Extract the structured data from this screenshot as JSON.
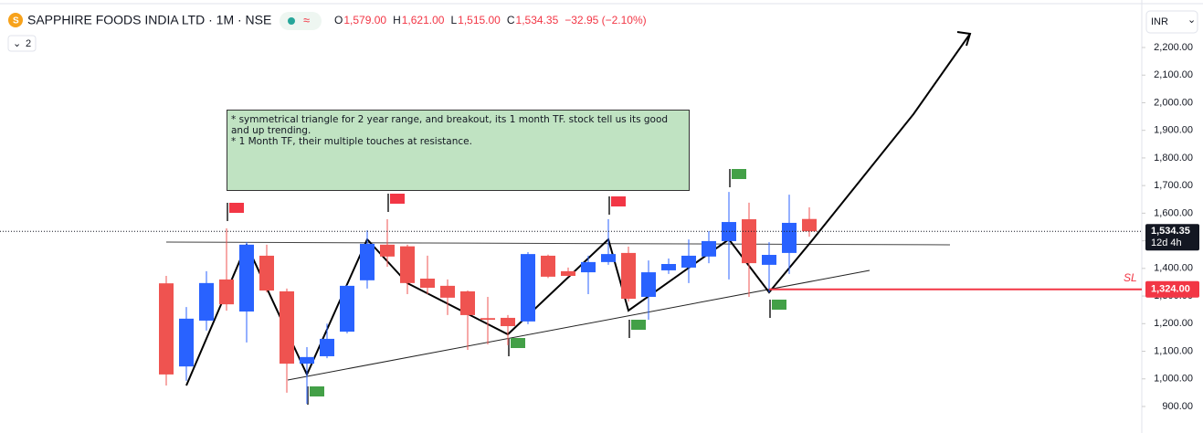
{
  "chart_data": {
    "type": "candlestick",
    "header": {
      "symbol": "SAPPHIRE FOODS INDIA LTD · 1M · NSE",
      "ohlc": [
        {
          "label": "O",
          "value": "1,579.00"
        },
        {
          "label": "H",
          "value": "1,621.00"
        },
        {
          "label": "L",
          "value": "1,515.00"
        },
        {
          "label": "C",
          "value": "1,534.35"
        }
      ],
      "change": "−32.95 (−2.10%)",
      "indicator_count": "2",
      "currency": "INR"
    },
    "annotation": [
      "*  symmetrical triangle for 2 year range, and breakout, its 1 month TF. stock tell us its good and up trending.",
      "*  1 Month TF, their multiple touches at resistance."
    ],
    "up_color": "#2962ff",
    "down_color": "#ef5350",
    "open": [
      1346,
      1045,
      1211,
      1360,
      1244,
      1446,
      1317,
      1055,
      1082,
      1171,
      1357,
      1486,
      1480,
      1363,
      1337,
      1317,
      1220,
      1221,
      1208,
      1446,
      1390,
      1386,
      1423,
      1456,
      1297,
      1393,
      1403,
      1443,
      1499,
      1578,
      1413,
      1456,
      1579
    ],
    "high": [
      1373,
      1260,
      1390,
      1545,
      1495,
      1486,
      1327,
      1115,
      1200,
      1340,
      1538,
      1578,
      1486,
      1446,
      1360,
      1320,
      1297,
      1231,
      1459,
      1450,
      1403,
      1446,
      1578,
      1479,
      1429,
      1436,
      1505,
      1535,
      1677,
      1638,
      1495,
      1667,
      1621
    ],
    "low": [
      976,
      993,
      1175,
      1247,
      1132,
      1313,
      950,
      910,
      1075,
      1165,
      1327,
      1406,
      1307,
      1307,
      1231,
      1105,
      1125,
      1122,
      1198,
      1365,
      1370,
      1307,
      1413,
      1280,
      1214,
      1380,
      1347,
      1419,
      1360,
      1297,
      1313,
      1380,
      1515
    ],
    "close": [
      1016,
      1218,
      1347,
      1270,
      1486,
      1320,
      1055,
      1079,
      1145,
      1337,
      1489,
      1443,
      1347,
      1330,
      1294,
      1231,
      1214,
      1191,
      1452,
      1370,
      1373,
      1423,
      1452,
      1290,
      1386,
      1416,
      1446,
      1499,
      1568,
      1419,
      1449,
      1565,
      1534.35
    ],
    "ylim": [
      804,
      2372
    ],
    "yticks": [
      {
        "value": 900,
        "label": "900.00"
      },
      {
        "value": 1000,
        "label": "1,000.00"
      },
      {
        "value": 1100,
        "label": "1,100.00"
      },
      {
        "value": 1200,
        "label": "1,200.00"
      },
      {
        "value": 1300,
        "label": "1,300.00"
      },
      {
        "value": 1400,
        "label": "1,400.00"
      },
      {
        "value": 1500,
        "label": "1,500.00"
      },
      {
        "value": 1600,
        "label": "1,600.00"
      },
      {
        "value": 1700,
        "label": "1,700.00"
      },
      {
        "value": 1800,
        "label": "1,800.00"
      },
      {
        "value": 1900,
        "label": "1,900.00"
      },
      {
        "value": 2000,
        "label": "2,000.00"
      },
      {
        "value": 2100,
        "label": "2,100.00"
      },
      {
        "value": 2200,
        "label": "2,200.00"
      }
    ],
    "last_price": {
      "value": 1534.35,
      "label": "1,534.35",
      "countdown": "12d 4h"
    },
    "stop_loss": {
      "value": 1324,
      "label": "1,324.00",
      "text": "SL",
      "color": "#f23645"
    }
  }
}
